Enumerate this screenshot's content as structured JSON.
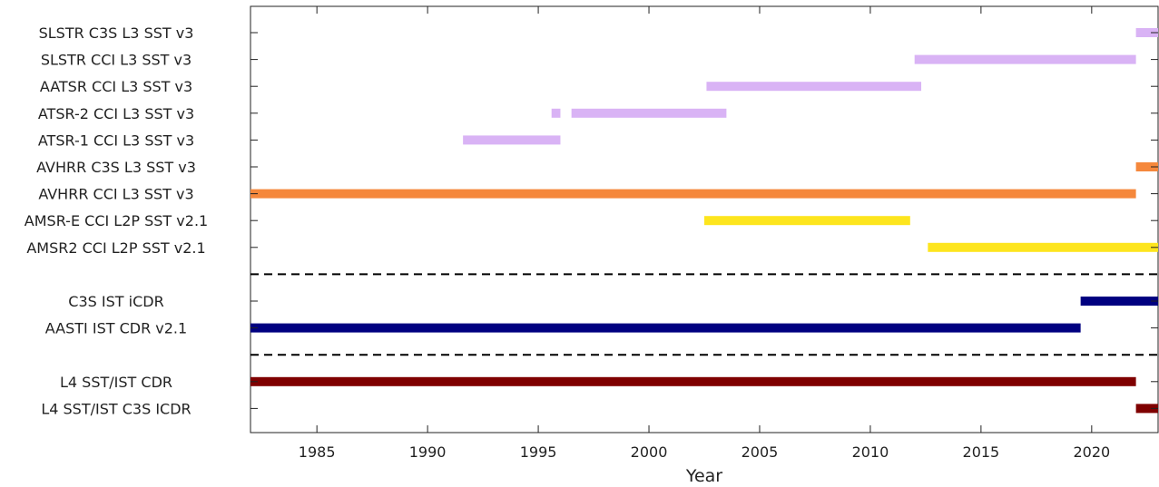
{
  "chart_data": {
    "type": "bar",
    "orientation": "horizontal-timeline",
    "xlabel": "Year",
    "xlim": [
      1982,
      2023
    ],
    "xticks": [
      1985,
      1990,
      1995,
      2000,
      2005,
      2010,
      2015,
      2020
    ],
    "xtick_labels": [
      "1985",
      "1990",
      "1995",
      "2000",
      "2005",
      "2010",
      "2015",
      "2020"
    ],
    "rows": [
      {
        "label": "SLSTR C3S L3 SST v3",
        "color": "#d9b3f5",
        "segments": [
          [
            2022.0,
            2023.0
          ]
        ]
      },
      {
        "label": "SLSTR CCI L3 SST v3",
        "color": "#d9b3f5",
        "segments": [
          [
            2012.0,
            2022.0
          ]
        ]
      },
      {
        "label": "AATSR CCI L3 SST v3",
        "color": "#d9b3f5",
        "segments": [
          [
            2002.6,
            2012.3
          ]
        ]
      },
      {
        "label": "ATSR-2 CCI L3 SST v3",
        "color": "#d9b3f5",
        "segments": [
          [
            1995.6,
            1996.0
          ],
          [
            1996.5,
            2003.5
          ]
        ]
      },
      {
        "label": "ATSR-1 CCI L3 SST v3",
        "color": "#d9b3f5",
        "segments": [
          [
            1991.6,
            1996.0
          ]
        ]
      },
      {
        "label": "AVHRR C3S L3 SST v3",
        "color": "#f5883c",
        "segments": [
          [
            2022.0,
            2023.0
          ]
        ]
      },
      {
        "label": "AVHRR CCI L3 SST v3",
        "color": "#f5883c",
        "segments": [
          [
            1982.0,
            2022.0
          ]
        ]
      },
      {
        "label": "AMSR-E CCI L2P SST v2.1",
        "color": "#fde51e",
        "segments": [
          [
            2002.5,
            2011.8
          ]
        ]
      },
      {
        "label": "AMSR2 CCI L2P SST v2.1",
        "color": "#fde51e",
        "segments": [
          [
            2012.6,
            2023.0
          ]
        ]
      },
      {
        "label": "",
        "separator": true
      },
      {
        "label": "C3S IST iCDR",
        "color": "#000080",
        "segments": [
          [
            2019.5,
            2023.0
          ]
        ]
      },
      {
        "label": "AASTI IST CDR v2.1",
        "color": "#000080",
        "segments": [
          [
            1982.0,
            2019.5
          ]
        ]
      },
      {
        "label": "",
        "separator": true
      },
      {
        "label": "L4 SST/IST CDR",
        "color": "#7f0000",
        "segments": [
          [
            1982.0,
            2022.0
          ]
        ]
      },
      {
        "label": "L4 SST/IST C3S ICDR",
        "color": "#7f0000",
        "segments": [
          [
            2022.0,
            2023.0
          ]
        ]
      }
    ],
    "grid": false,
    "legend": "none"
  }
}
